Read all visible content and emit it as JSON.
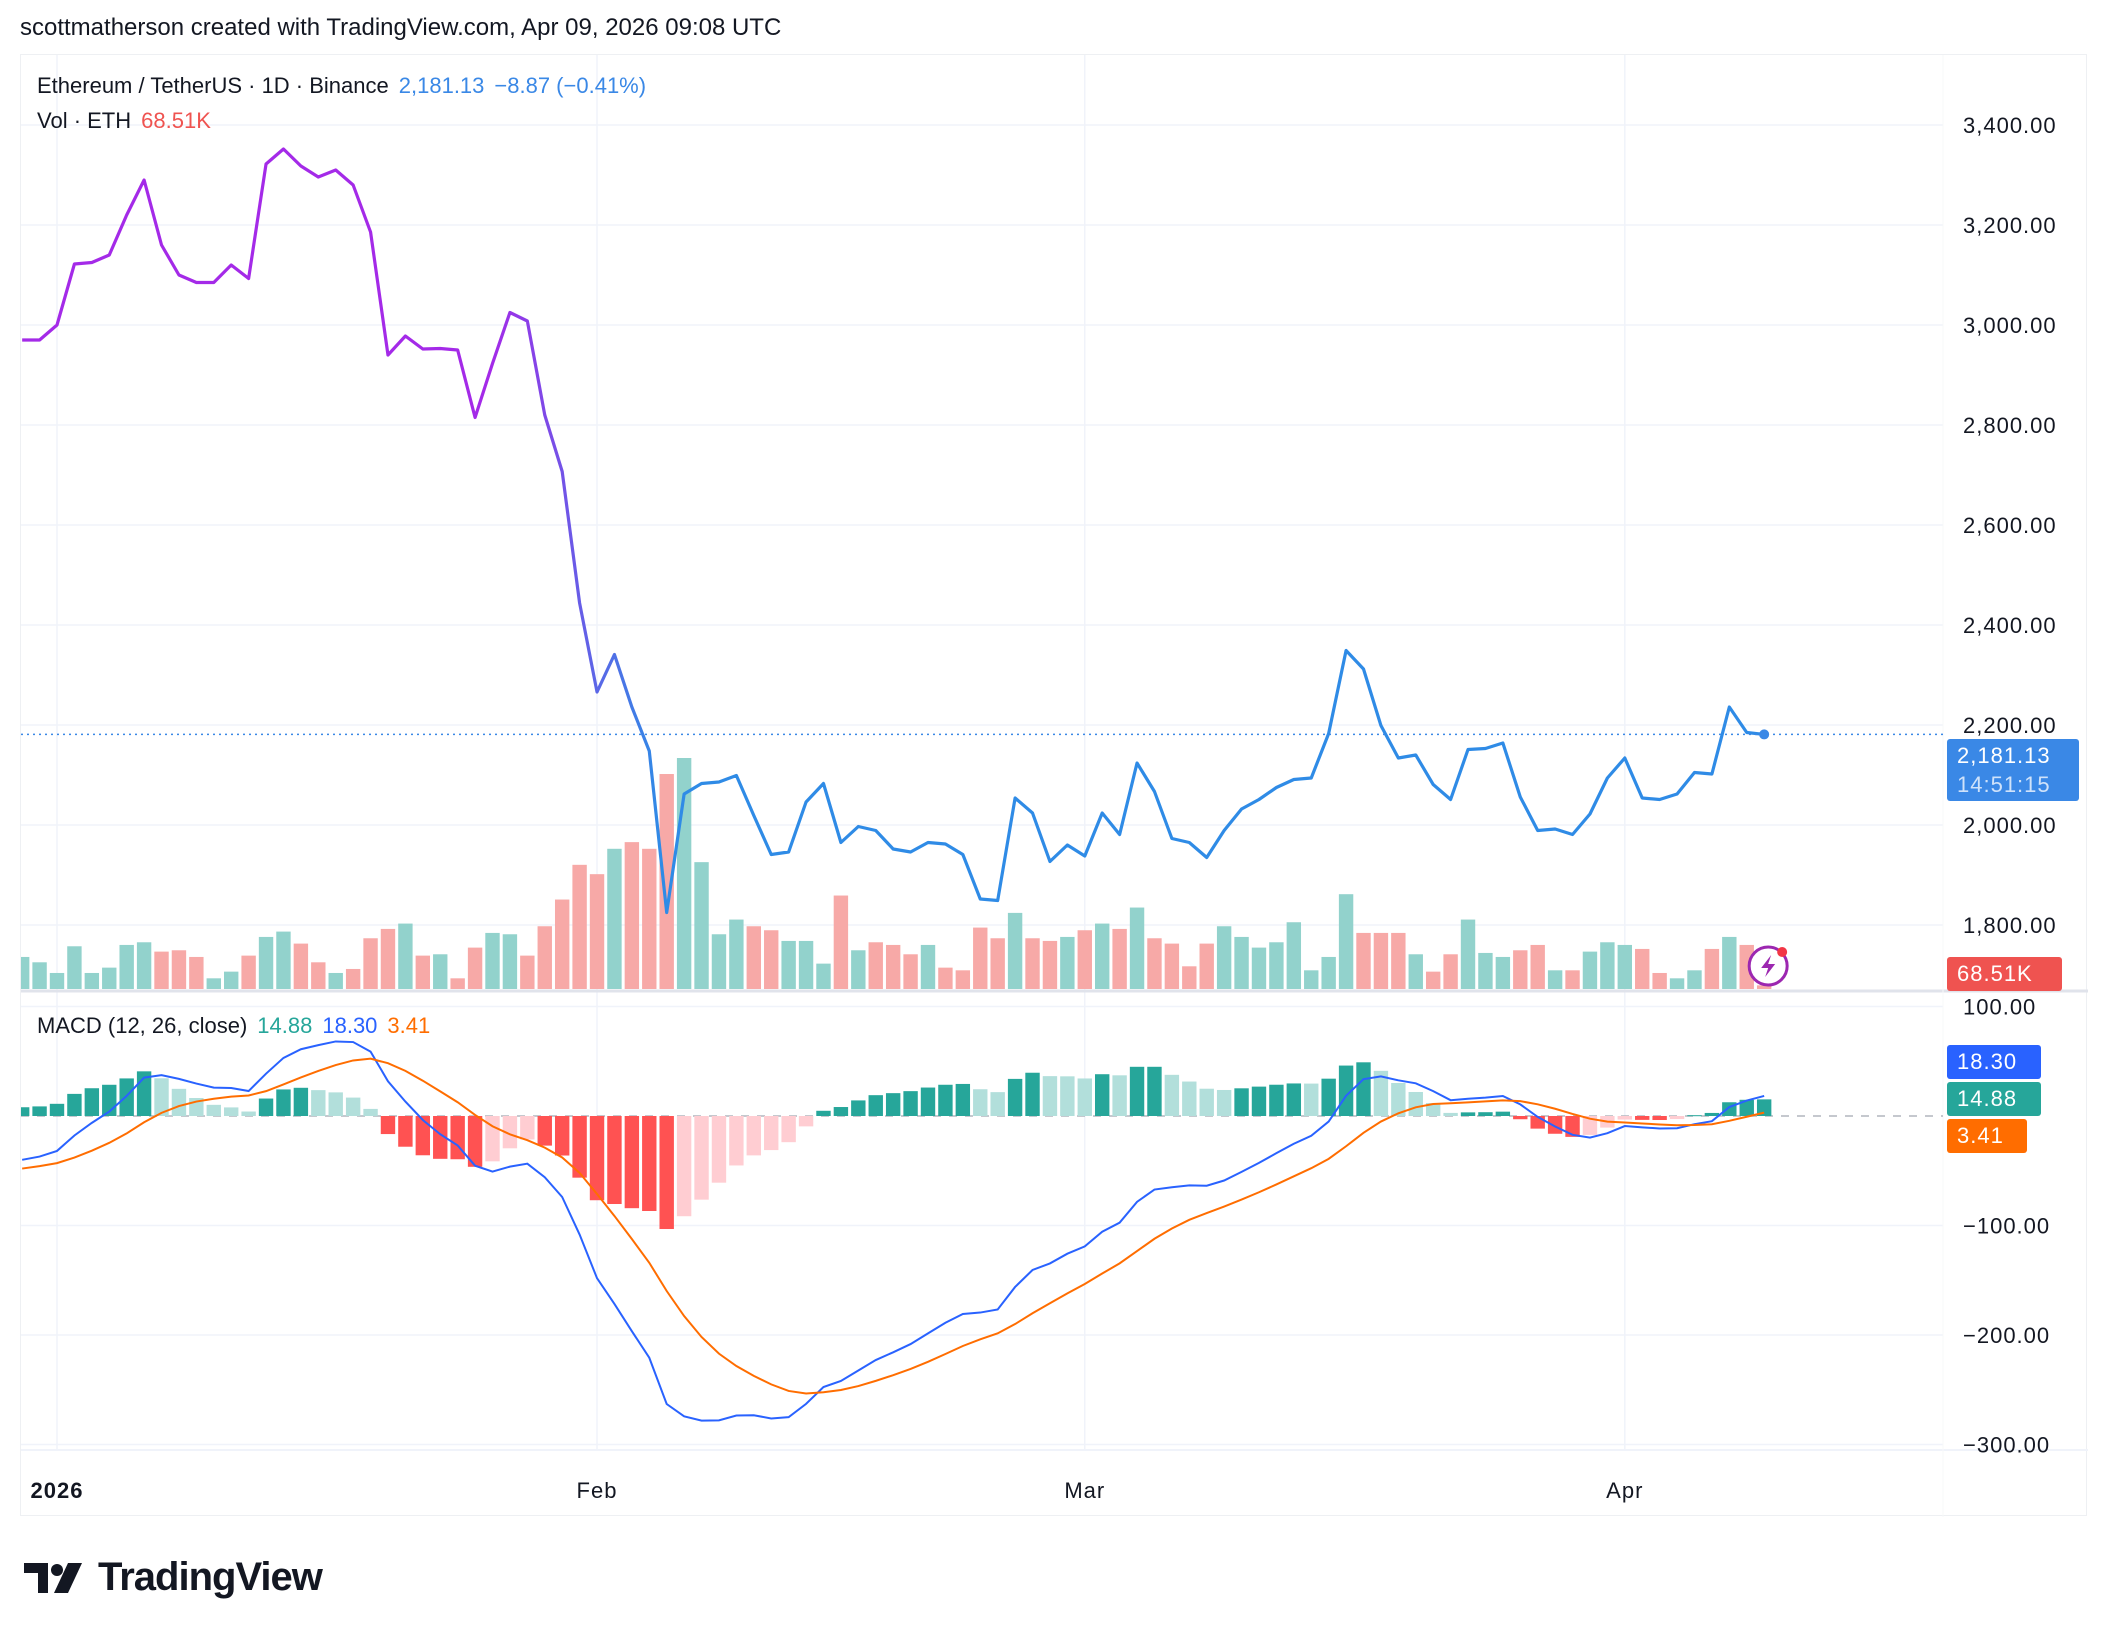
{
  "credit": "scottmatherson created with TradingView.com, Apr 09, 2026 09:08 UTC",
  "legend": {
    "symbol": "Ethereum / TetherUS · 1D · Binance",
    "price": "2,181.13",
    "change": "−8.87 (−0.41%)",
    "vol_label": "Vol · ETH",
    "vol_value": "68.51K",
    "macd_label": "MACD (12, 26, close)",
    "macd_hist": "14.88",
    "macd_line": "18.30",
    "macd_signal": "3.41"
  },
  "tags": {
    "price": "2,181.13",
    "countdown": "14:51:15",
    "volume": "68.51K",
    "macd_line": "18.30",
    "macd_hist": "14.88",
    "macd_signal": "3.41"
  },
  "logo": {
    "text": "TradingView"
  },
  "colors": {
    "line_early": "#a42ae8",
    "line_late": "#2f8be6",
    "vol_up": "#92d2cc",
    "vol_down": "#f7a9a7",
    "price_tag": "#3a88e6",
    "vol_tag": "#ef5350",
    "macd_line": "#2962ff",
    "macd_signal": "#ff6d00",
    "hist_up_grow": "#26a69a",
    "hist_up_fall": "#b2dfdb",
    "hist_down_grow": "#ff5252",
    "hist_down_fall": "#ffcdd2",
    "alert_icon": "#9c27b0"
  },
  "icons": {
    "alert": "lightning-alert-icon",
    "logo": "tradingview-logo-icon"
  },
  "chart_data": {
    "type": "line",
    "title": "Ethereum / TetherUS · 1D · Binance",
    "x_start": "2025-12-30",
    "x_end": "2026-04-09",
    "x_interval": "1D",
    "x_tick_labels": [
      "2026",
      "Feb",
      "Mar",
      "Apr"
    ],
    "x_tick_dates": [
      "2026-01-01",
      "2026-02-01",
      "2026-03-01",
      "2026-04-01"
    ],
    "price": {
      "ylim": [
        1700,
        3480
      ],
      "y_ticks": [
        1800,
        2000,
        2200,
        2400,
        2600,
        2800,
        3000,
        3200,
        3400
      ],
      "y_tick_labels": [
        "1,800.00",
        "2,000.00",
        "2,200.00",
        "2,400.00",
        "2,600.00",
        "2,800.00",
        "3,000.00",
        "3,200.00",
        "3,400.00"
      ],
      "last": 2181.13,
      "close": [
        2970,
        2970,
        3000,
        3122,
        3125,
        3140,
        3220,
        3290,
        3160,
        3100,
        3085,
        3085,
        3120,
        3093,
        3322,
        3352,
        3318,
        3296,
        3310,
        3280,
        3186,
        2940,
        2978,
        2952,
        2953,
        2950,
        2815,
        2923,
        3025,
        3008,
        2820,
        2707,
        2444,
        2266,
        2341,
        2236,
        2148,
        1825,
        2062,
        2083,
        2086,
        2099,
        2019,
        1941,
        1946,
        2046,
        2083,
        1965,
        1997,
        1989,
        1952,
        1946,
        1965,
        1962,
        1941,
        1852,
        1849,
        2054,
        2024,
        1927,
        1960,
        1938,
        2024,
        1981,
        2124,
        2067,
        1973,
        1965,
        1935,
        1989,
        2032,
        2051,
        2075,
        2091,
        2094,
        2183,
        2349,
        2312,
        2199,
        2134,
        2140,
        2081,
        2051,
        2151,
        2153,
        2164,
        2056,
        1989,
        1992,
        1981,
        2022,
        2094,
        2134,
        2054,
        2051,
        2062,
        2105,
        2102,
        2236,
        2185,
        2181.13
      ]
    },
    "volume": {
      "unit": "K ETH",
      "values": [
        600,
        500,
        300,
        800,
        300,
        400,
        825,
        875,
        700,
        725,
        600,
        200,
        325,
        625,
        975,
        1075,
        850,
        500,
        300,
        375,
        950,
        1125,
        1225,
        625,
        650,
        200,
        775,
        1050,
        1025,
        625,
        1175,
        1675,
        2325,
        2150,
        2625,
        2750,
        2625,
        4025,
        4325,
        2375,
        1025,
        1300,
        1175,
        1100,
        900,
        900,
        475,
        1750,
        725,
        875,
        825,
        650,
        825,
        400,
        350,
        1150,
        950,
        1425,
        950,
        900,
        975,
        1100,
        1225,
        1125,
        1525,
        950,
        850,
        425,
        850,
        1175,
        975,
        775,
        875,
        1250,
        350,
        600,
        1775,
        1050,
        1050,
        1050,
        650,
        325,
        650,
        1300,
        675,
        600,
        725,
        825,
        350,
        350,
        700,
        875,
        825,
        750,
        300,
        200,
        350,
        750,
        975,
        825,
        68.51
      ]
    },
    "macd": {
      "params": [
        12,
        26
      ],
      "source": "close",
      "ylim": [
        -320,
        110
      ],
      "y_ticks": [
        100,
        -100,
        -200,
        -300
      ],
      "y_tick_labels": [
        "100.00",
        "−100.00",
        "−200.00",
        "−300.00"
      ],
      "last_macd": 18.3,
      "last_signal": 3.41,
      "last_hist": 14.88
    }
  }
}
